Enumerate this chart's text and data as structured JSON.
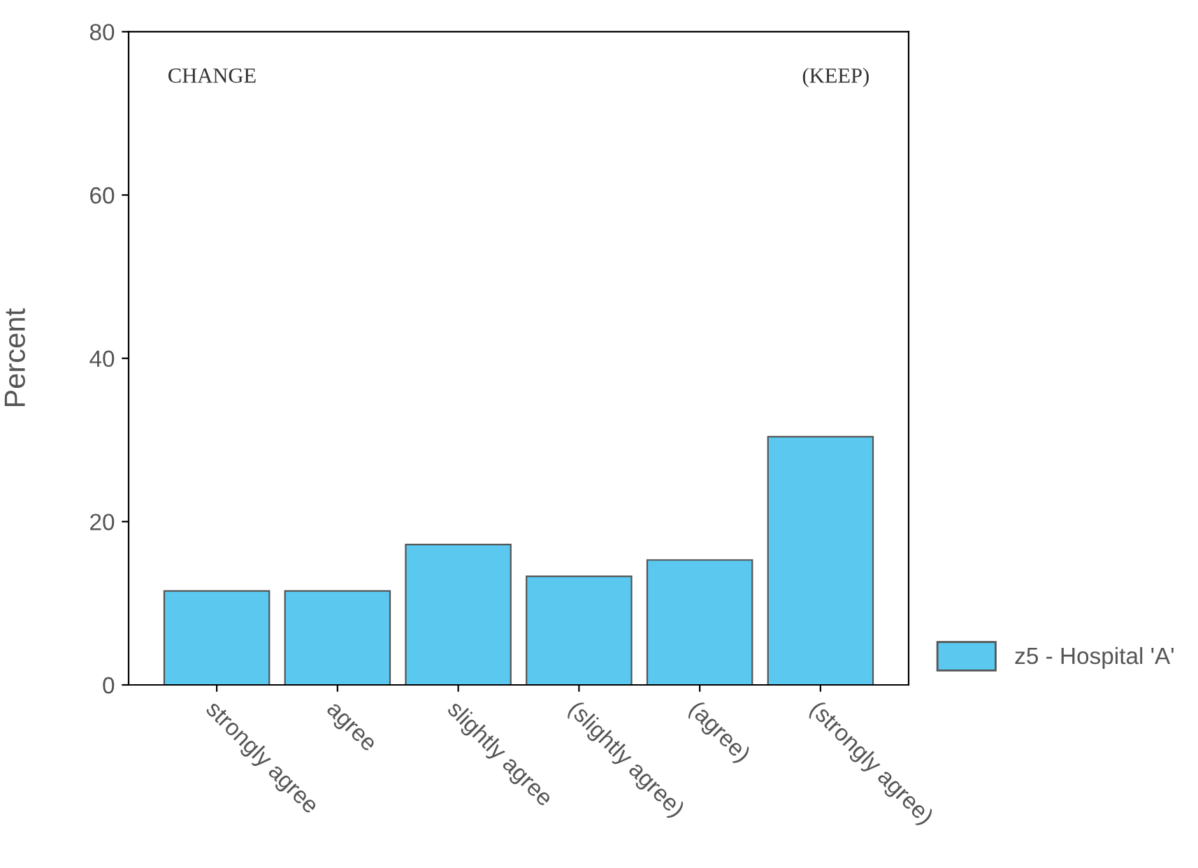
{
  "chart_data": {
    "type": "bar",
    "ylabel": "Percent",
    "categories": [
      "strongly agree",
      "agree",
      "slightly agree",
      "(slightly agree)",
      "(agree)",
      "(strongly agree)"
    ],
    "series": [
      {
        "name": "z5 - Hospital 'A'",
        "color": "#5bc8f0",
        "values": [
          11.5,
          11.5,
          17.2,
          13.3,
          15.3,
          30.4
        ]
      }
    ],
    "ylim": [
      0,
      80
    ],
    "yticks": [
      0,
      20,
      40,
      60,
      80
    ],
    "grid": false,
    "legend": "bottom right",
    "annotations": [
      "CHANGE",
      "(KEEP)"
    ]
  }
}
